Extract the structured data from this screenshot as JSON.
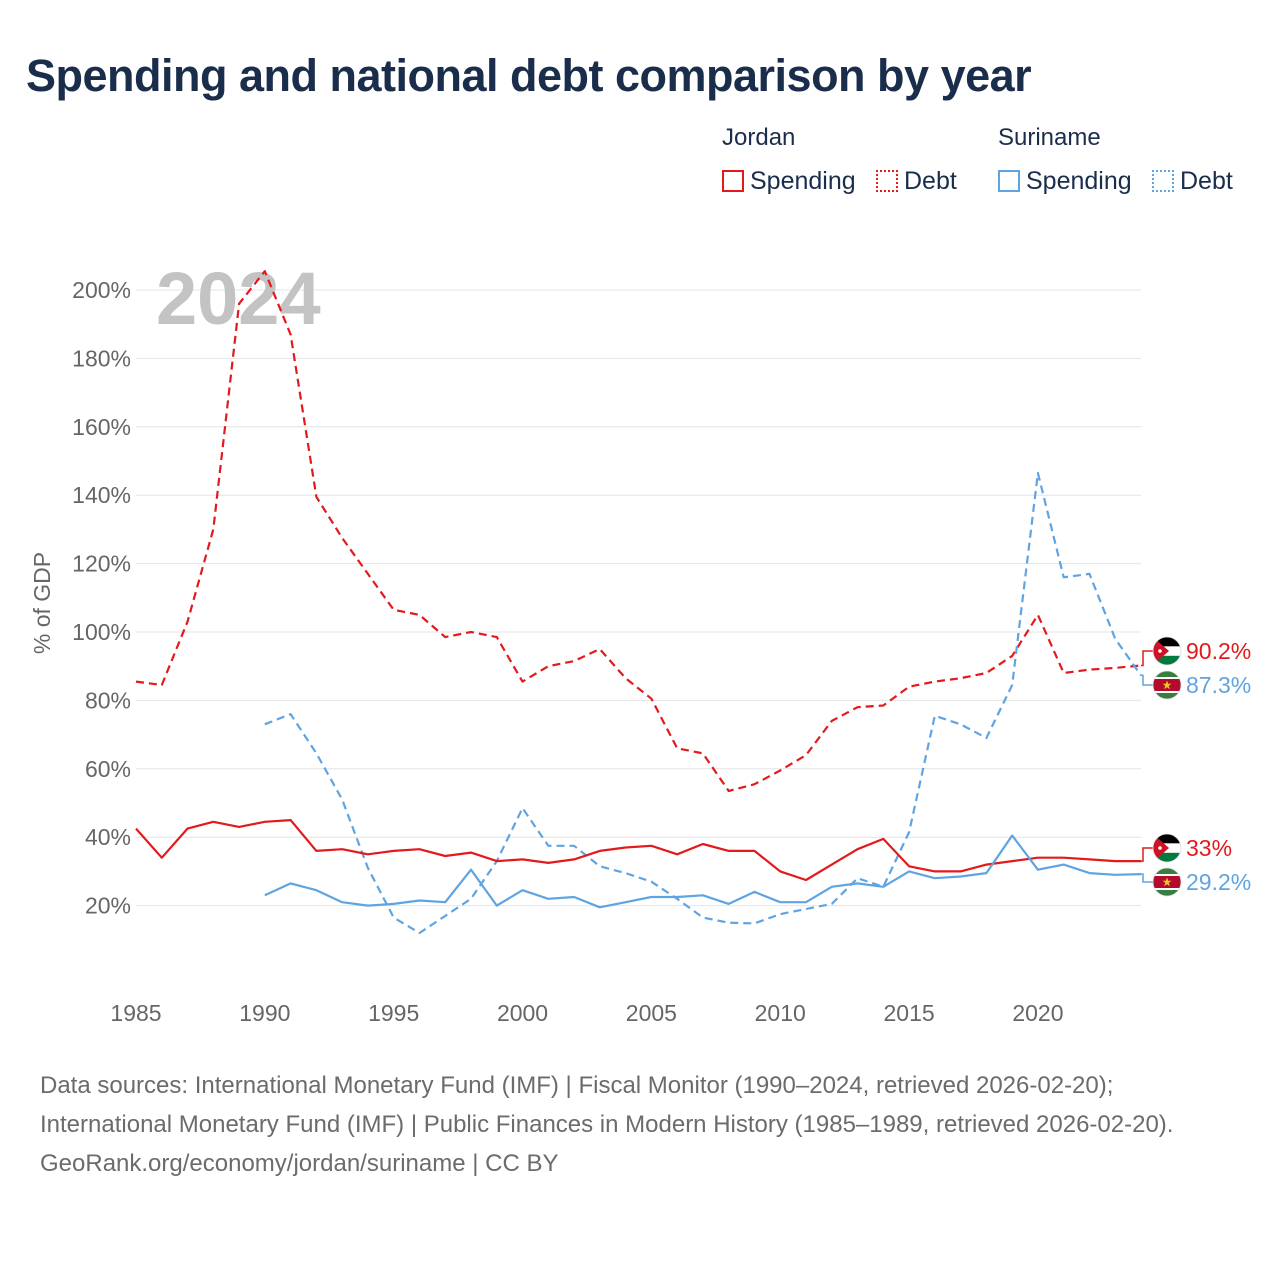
{
  "title": "Spending and national debt comparison by year",
  "legend": {
    "groups": [
      {
        "country": "Jordan",
        "color": "#e3191c",
        "spending_label": "Spending",
        "debt_label": "Debt"
      },
      {
        "country": "Suriname",
        "color": "#5fa4e2",
        "spending_label": "Spending",
        "debt_label": "Debt"
      }
    ]
  },
  "chart_data": {
    "type": "line",
    "year_watermark": "2024",
    "ylabel": "% of GDP",
    "xlabel": "",
    "xlim": [
      1985,
      2024
    ],
    "ylim": [
      0,
      210
    ],
    "x_ticks": [
      1985,
      1990,
      1995,
      2000,
      2005,
      2010,
      2015,
      2020
    ],
    "y_ticks": [
      {
        "value": 20,
        "label": "20%"
      },
      {
        "value": 40,
        "label": "40%"
      },
      {
        "value": 60,
        "label": "60%"
      },
      {
        "value": 80,
        "label": "80%"
      },
      {
        "value": 100,
        "label": "100%"
      },
      {
        "value": 120,
        "label": "120%"
      },
      {
        "value": 140,
        "label": "140%"
      },
      {
        "value": 160,
        "label": "160%"
      },
      {
        "value": 180,
        "label": "180%"
      },
      {
        "value": 200,
        "label": "200%"
      }
    ],
    "series": [
      {
        "name": "Jordan Debt",
        "country": "Jordan",
        "metric": "Debt",
        "color": "#e3191c",
        "dash": true,
        "x": [
          1985,
          1986,
          1987,
          1988,
          1989,
          1990,
          1991,
          1992,
          1993,
          1994,
          1995,
          1996,
          1997,
          1998,
          1999,
          2000,
          2001,
          2002,
          2003,
          2004,
          2005,
          2006,
          2007,
          2008,
          2009,
          2010,
          2011,
          2012,
          2013,
          2014,
          2015,
          2016,
          2017,
          2018,
          2019,
          2020,
          2021,
          2022,
          2023,
          2024
        ],
        "values": [
          85.5,
          84.5,
          103,
          130,
          196,
          205.5,
          187,
          139.5,
          127.5,
          117,
          106.5,
          105,
          98.5,
          100,
          98.5,
          85.5,
          90,
          91.5,
          95,
          86.5,
          80.5,
          66,
          64.5,
          53.5,
          55.5,
          59.5,
          64,
          74,
          78,
          78.5,
          84,
          85.5,
          86.5,
          88,
          93,
          105,
          88,
          89,
          89.5,
          90.2
        ],
        "end_label": "90.2%"
      },
      {
        "name": "Suriname Debt",
        "country": "Suriname",
        "metric": "Debt",
        "color": "#5fa4e2",
        "dash": true,
        "x": [
          1990,
          1991,
          1992,
          1993,
          1994,
          1995,
          1996,
          1997,
          1998,
          1999,
          2000,
          2001,
          2002,
          2003,
          2004,
          2005,
          2006,
          2007,
          2008,
          2009,
          2010,
          2011,
          2012,
          2013,
          2014,
          2015,
          2016,
          2017,
          2018,
          2019,
          2020,
          2021,
          2022,
          2023,
          2024
        ],
        "values": [
          73,
          76,
          64.5,
          51,
          31,
          16.5,
          12,
          17,
          22,
          33,
          48.5,
          37.5,
          37.5,
          31.5,
          29.5,
          27,
          22,
          16.5,
          15,
          14.8,
          17.5,
          19,
          20.5,
          28,
          25.5,
          41.5,
          75.5,
          73,
          69,
          84.5,
          146.5,
          116,
          117,
          98,
          87.3
        ],
        "end_label": "87.3%"
      },
      {
        "name": "Jordan Spending",
        "country": "Jordan",
        "metric": "Spending",
        "color": "#e3191c",
        "dash": false,
        "x": [
          1985,
          1986,
          1987,
          1988,
          1989,
          1990,
          1991,
          1992,
          1993,
          1994,
          1995,
          1996,
          1997,
          1998,
          1999,
          2000,
          2001,
          2002,
          2003,
          2004,
          2005,
          2006,
          2007,
          2008,
          2009,
          2010,
          2011,
          2012,
          2013,
          2014,
          2015,
          2016,
          2017,
          2018,
          2019,
          2020,
          2021,
          2022,
          2023,
          2024
        ],
        "values": [
          42.5,
          34,
          42.5,
          44.5,
          43,
          44.5,
          45,
          36,
          36.5,
          35,
          36,
          36.5,
          34.5,
          35.5,
          33,
          33.5,
          32.5,
          33.5,
          36,
          37,
          37.5,
          35,
          38,
          36,
          36,
          30,
          27.5,
          32,
          36.5,
          39.5,
          31.5,
          30,
          30,
          32,
          33,
          34,
          34,
          33.5,
          33,
          33
        ],
        "end_label": "33%"
      },
      {
        "name": "Suriname Spending",
        "country": "Suriname",
        "metric": "Spending",
        "color": "#5fa4e2",
        "dash": false,
        "x": [
          1990,
          1991,
          1992,
          1993,
          1994,
          1995,
          1996,
          1997,
          1998,
          1999,
          2000,
          2001,
          2002,
          2003,
          2004,
          2005,
          2006,
          2007,
          2008,
          2009,
          2010,
          2011,
          2012,
          2013,
          2014,
          2015,
          2016,
          2017,
          2018,
          2019,
          2020,
          2021,
          2022,
          2023,
          2024
        ],
        "values": [
          23,
          26.5,
          24.5,
          21,
          20,
          20.5,
          21.5,
          21,
          30.5,
          20,
          24.5,
          22,
          22.5,
          19.5,
          21,
          22.5,
          22.5,
          23,
          20.5,
          24,
          21,
          21,
          25.5,
          26.5,
          25.5,
          30,
          28,
          28.5,
          29.5,
          40.5,
          30.5,
          32,
          29.5,
          29,
          29.2
        ],
        "end_label": "29.2%"
      }
    ]
  },
  "footer": {
    "sources": "Data sources: International Monetary Fund (IMF) | Fiscal Monitor (1990–2024, retrieved 2026-02-20); International Monetary Fund (IMF) | Public Finances in Modern History (1985–1989, retrieved 2026-02-20).",
    "credit": "GeoRank.org/economy/jordan/suriname | CC BY"
  }
}
